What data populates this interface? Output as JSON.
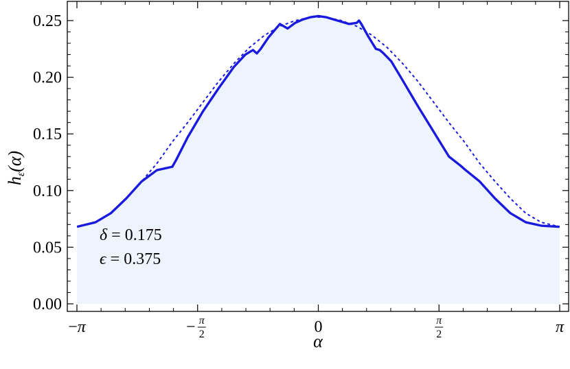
{
  "chart_data": {
    "type": "line",
    "xlabel": "α",
    "ylabel_main": "h",
    "ylabel_sub": "ε",
    "ylabel_arg": "(α)",
    "xlim": [
      -3.14159,
      3.14159
    ],
    "ylim": [
      0.0,
      0.26
    ],
    "xticks": [
      {
        "value": -3.14159,
        "kind": "plain",
        "sign": "−",
        "text": "π"
      },
      {
        "value": -1.5708,
        "kind": "frac",
        "sign": "−",
        "num": "π",
        "den": "2"
      },
      {
        "value": 0,
        "kind": "plain",
        "sign": "",
        "text": "0"
      },
      {
        "value": 1.5708,
        "kind": "frac",
        "sign": "",
        "num": "π",
        "den": "2"
      },
      {
        "value": 3.14159,
        "kind": "plain",
        "sign": "",
        "text": "π"
      }
    ],
    "yticks": [
      {
        "value": 0.0,
        "label": "0.00"
      },
      {
        "value": 0.05,
        "label": "0.05"
      },
      {
        "value": 0.1,
        "label": "0.10"
      },
      {
        "value": 0.15,
        "label": "0.15"
      },
      {
        "value": 0.2,
        "label": "0.20"
      },
      {
        "value": 0.25,
        "label": "0.25"
      }
    ],
    "grid": false,
    "series": [
      {
        "style": "solid",
        "color": "#1a1adf",
        "fill": "#edf4fd",
        "x": [
          -3.14,
          -2.9,
          -2.7,
          -2.5,
          -2.3,
          -2.1,
          -1.9,
          -1.85,
          -1.7,
          -1.5,
          -1.3,
          -1.1,
          -0.95,
          -0.85,
          -0.8,
          -0.75,
          -0.65,
          -0.5,
          -0.4,
          -0.3,
          -0.2,
          -0.1,
          0.0,
          0.1,
          0.2,
          0.3,
          0.4,
          0.5,
          0.53,
          0.56,
          0.65,
          0.75,
          0.8,
          0.85,
          0.95,
          1.1,
          1.3,
          1.5,
          1.7,
          1.85,
          1.9,
          2.1,
          2.3,
          2.5,
          2.7,
          2.9,
          3.14
        ],
        "y": [
          0.068,
          0.072,
          0.08,
          0.093,
          0.108,
          0.118,
          0.121,
          0.127,
          0.147,
          0.17,
          0.19,
          0.209,
          0.22,
          0.224,
          0.221,
          0.225,
          0.235,
          0.247,
          0.243,
          0.248,
          0.251,
          0.253,
          0.254,
          0.253,
          0.251,
          0.249,
          0.247,
          0.248,
          0.25,
          0.247,
          0.236,
          0.225,
          0.224,
          0.221,
          0.214,
          0.197,
          0.174,
          0.152,
          0.13,
          0.122,
          0.119,
          0.108,
          0.093,
          0.08,
          0.072,
          0.069,
          0.068
        ]
      },
      {
        "style": "dashed",
        "color": "#1a1adf",
        "x": [
          -3.14,
          -2.9,
          -2.7,
          -2.5,
          -2.3,
          -2.1,
          -1.9,
          -1.7,
          -1.5,
          -1.3,
          -1.1,
          -0.9,
          -0.7,
          -0.5,
          -0.3,
          -0.1,
          0.0,
          0.1,
          0.3,
          0.5,
          0.7,
          0.9,
          1.1,
          1.3,
          1.5,
          1.7,
          1.9,
          2.1,
          2.3,
          2.5,
          2.7,
          2.9,
          3.14
        ],
        "y": [
          0.068,
          0.072,
          0.08,
          0.093,
          0.108,
          0.124,
          0.143,
          0.16,
          0.178,
          0.196,
          0.212,
          0.226,
          0.237,
          0.245,
          0.25,
          0.253,
          0.253,
          0.253,
          0.25,
          0.245,
          0.237,
          0.226,
          0.212,
          0.196,
          0.178,
          0.16,
          0.143,
          0.124,
          0.108,
          0.093,
          0.08,
          0.072,
          0.068
        ]
      }
    ],
    "annotations": {
      "delta": {
        "symbol": "δ",
        "text": " = 0.175"
      },
      "epsilon": {
        "symbol": "ϵ",
        "text": " = 0.375"
      }
    }
  }
}
